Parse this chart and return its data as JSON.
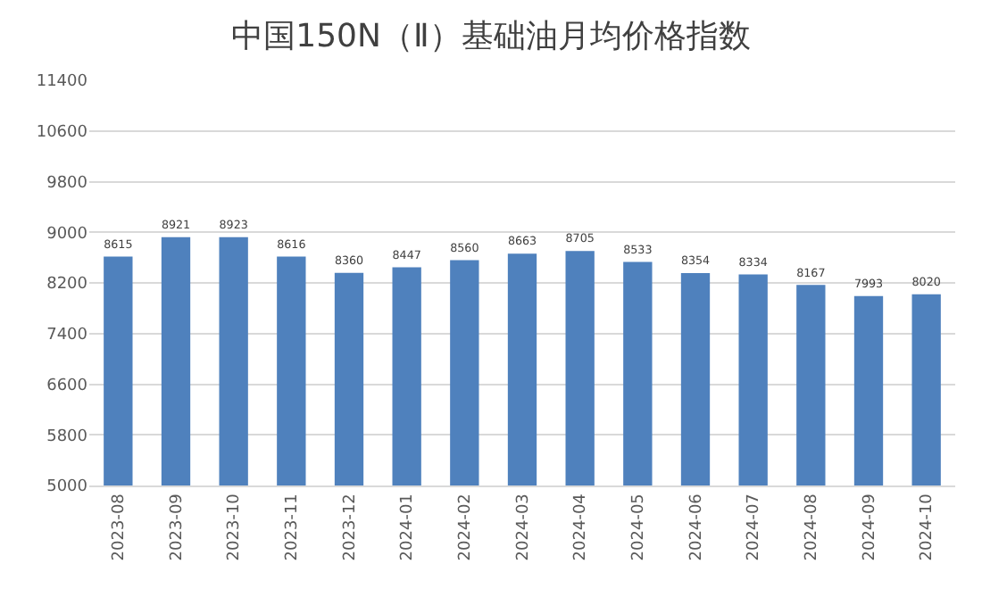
{
  "chart_data": {
    "type": "bar",
    "title": "中国150N（Ⅱ）基础油月均价格指数",
    "categories": [
      "2023-08",
      "2023-09",
      "2023-10",
      "2023-11",
      "2023-12",
      "2024-01",
      "2024-02",
      "2024-03",
      "2024-04",
      "2024-05",
      "2024-06",
      "2024-07",
      "2024-08",
      "2024-09",
      "2024-10"
    ],
    "values": [
      8615,
      8921,
      8923,
      8616,
      8360,
      8447,
      8560,
      8663,
      8705,
      8533,
      8354,
      8334,
      8167,
      7993,
      8020
    ],
    "color": "#4f81bd",
    "ylim": [
      5000,
      11400
    ],
    "yticks": [
      5000,
      5800,
      6600,
      7400,
      8200,
      9000,
      9800,
      10600,
      11400
    ],
    "grid": "y",
    "data_labels": true
  }
}
